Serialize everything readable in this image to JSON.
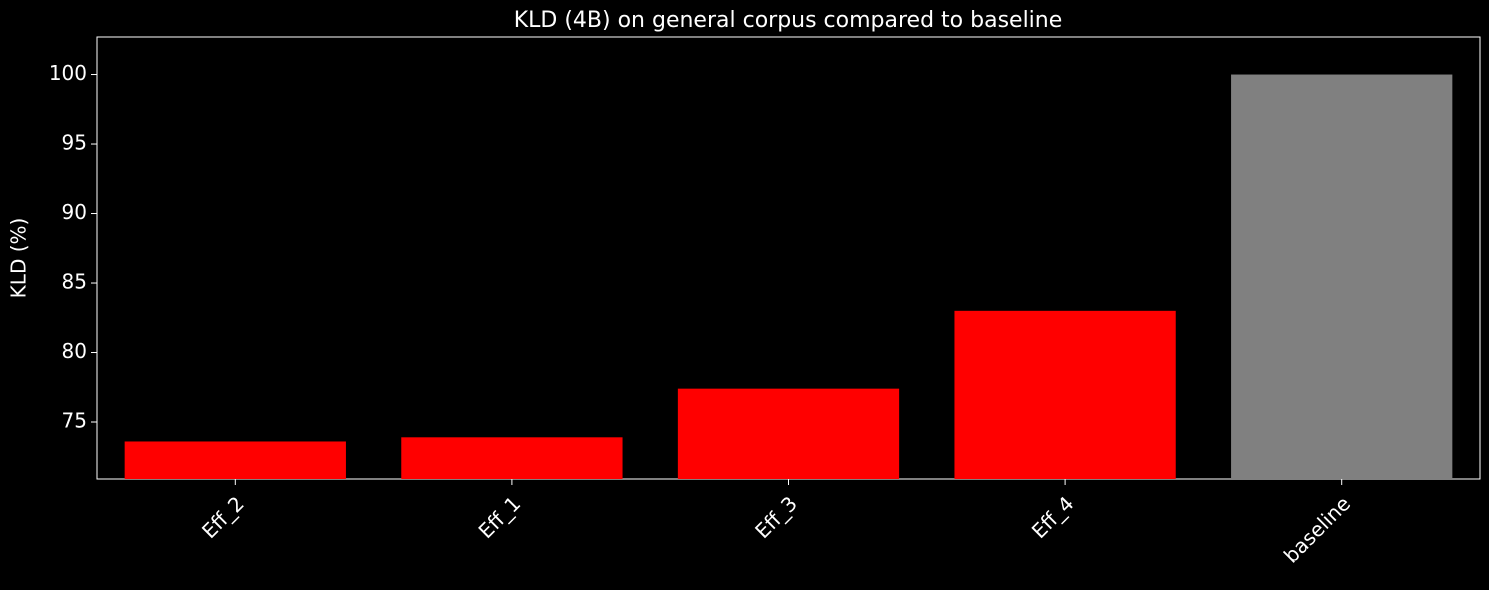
{
  "chart_data": {
    "type": "bar",
    "title": "KLD (4B) on general corpus compared to baseline",
    "y_label": "KLD (%)",
    "categories": [
      "Eff_2",
      "Eff_1",
      "Eff_3",
      "Eff_4",
      "baseline"
    ],
    "values": [
      73.6,
      73.9,
      77.4,
      83.0,
      100
    ],
    "colors": [
      "#ff0000",
      "#ff0000",
      "#ff0000",
      "#ff0000",
      "#808080"
    ],
    "ylim": [
      70.9,
      102.7
    ],
    "yticks": [
      75,
      80,
      85,
      90,
      95,
      100
    ],
    "grid": false
  }
}
